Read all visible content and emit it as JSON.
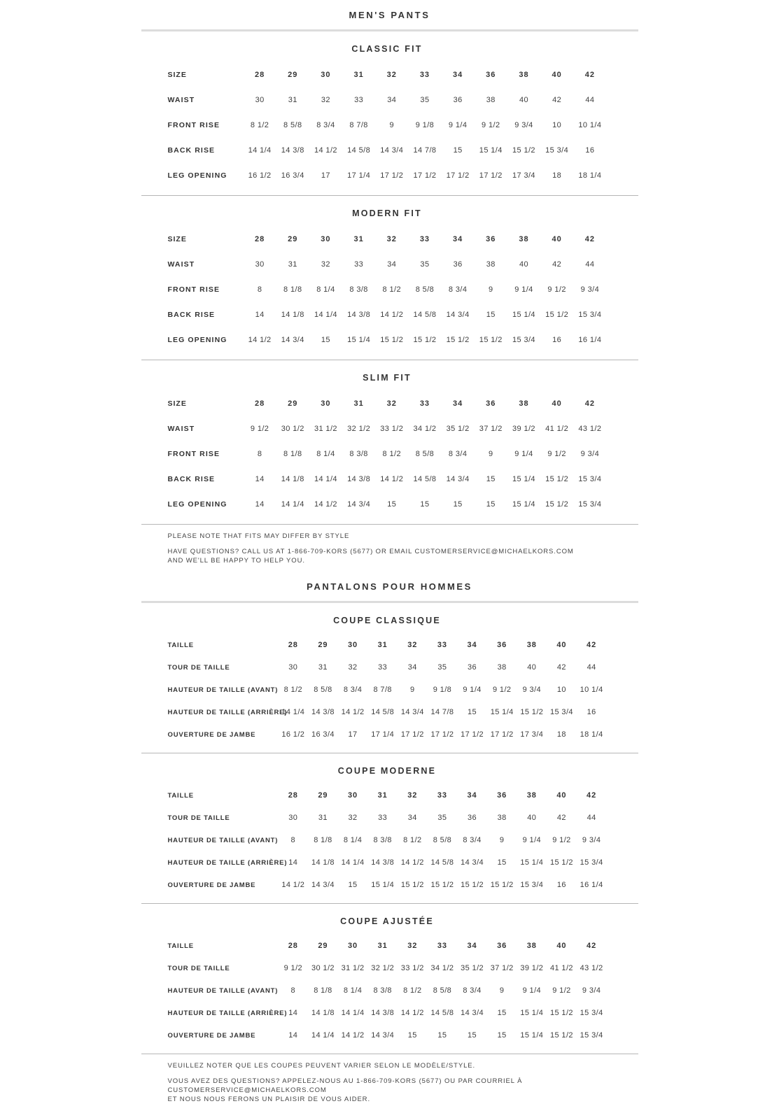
{
  "colors": {
    "text": "#333333",
    "value_text": "#3f3f3f",
    "rule_thick": "#dcdcdc",
    "rule_thin": "#b6b6b6",
    "background": "#ffffff"
  },
  "en": {
    "title": "MEN'S PANTS",
    "sections": [
      {
        "heading": "CLASSIC FIT",
        "rows": [
          {
            "label": "SIZE",
            "values": [
              "28",
              "29",
              "30",
              "31",
              "32",
              "33",
              "34",
              "36",
              "38",
              "40",
              "42"
            ]
          },
          {
            "label": "WAIST",
            "values": [
              "30",
              "31",
              "32",
              "33",
              "34",
              "35",
              "36",
              "38",
              "40",
              "42",
              "44"
            ]
          },
          {
            "label": "FRONT RISE",
            "values": [
              "8 1/2",
              "8 5/8",
              "8 3/4",
              "8 7/8",
              "9",
              "9 1/8",
              "9 1/4",
              "9 1/2",
              "9 3/4",
              "10",
              "10 1/4"
            ]
          },
          {
            "label": "BACK RISE",
            "values": [
              "14 1/4",
              "14 3/8",
              "14 1/2",
              "14 5/8",
              "14 3/4",
              "14 7/8",
              "15",
              "15 1/4",
              "15 1/2",
              "15 3/4",
              "16"
            ]
          },
          {
            "label": "LEG OPENING",
            "values": [
              "16 1/2",
              "16 3/4",
              "17",
              "17 1/4",
              "17 1/2",
              "17 1/2",
              "17 1/2",
              "17 1/2",
              "17 3/4",
              "18",
              "18 1/4"
            ]
          }
        ]
      },
      {
        "heading": "MODERN FIT",
        "rows": [
          {
            "label": "SIZE",
            "values": [
              "28",
              "29",
              "30",
              "31",
              "32",
              "33",
              "34",
              "36",
              "38",
              "40",
              "42"
            ]
          },
          {
            "label": "WAIST",
            "values": [
              "30",
              "31",
              "32",
              "33",
              "34",
              "35",
              "36",
              "38",
              "40",
              "42",
              "44"
            ]
          },
          {
            "label": "FRONT RISE",
            "values": [
              "8",
              "8 1/8",
              "8 1/4",
              "8 3/8",
              "8 1/2",
              "8 5/8",
              "8 3/4",
              "9",
              "9 1/4",
              "9 1/2",
              "9 3/4"
            ]
          },
          {
            "label": "BACK RISE",
            "values": [
              "14",
              "14 1/8",
              "14 1/4",
              "14 3/8",
              "14 1/2",
              "14 5/8",
              "14 3/4",
              "15",
              "15 1/4",
              "15 1/2",
              "15 3/4"
            ]
          },
          {
            "label": "LEG OPENING",
            "values": [
              "14 1/2",
              "14 3/4",
              "15",
              "15 1/4",
              "15 1/2",
              "15 1/2",
              "15 1/2",
              "15 1/2",
              "15 3/4",
              "16",
              "16 1/4"
            ]
          }
        ]
      },
      {
        "heading": "SLIM FIT",
        "rows": [
          {
            "label": "SIZE",
            "values": [
              "28",
              "29",
              "30",
              "31",
              "32",
              "33",
              "34",
              "36",
              "38",
              "40",
              "42"
            ]
          },
          {
            "label": "WAIST",
            "values": [
              "9 1/2",
              "30 1/2",
              "31 1/2",
              "32 1/2",
              "33 1/2",
              "34 1/2",
              "35 1/2",
              "37 1/2",
              "39 1/2",
              "41 1/2",
              "43 1/2"
            ]
          },
          {
            "label": "FRONT RISE",
            "values": [
              "8",
              "8 1/8",
              "8 1/4",
              "8 3/8",
              "8 1/2",
              "8 5/8",
              "8 3/4",
              "9",
              "9 1/4",
              "9 1/2",
              "9 3/4"
            ]
          },
          {
            "label": "BACK RISE",
            "values": [
              "14",
              "14 1/8",
              "14 1/4",
              "14 3/8",
              "14 1/2",
              "14 5/8",
              "14 3/4",
              "15",
              "15 1/4",
              "15 1/2",
              "15 3/4"
            ]
          },
          {
            "label": "LEG OPENING",
            "values": [
              "14",
              "14 1/4",
              "14 1/2",
              "14 3/4",
              "15",
              "15",
              "15",
              "15",
              "15 1/4",
              "15 1/2",
              "15 3/4"
            ]
          }
        ]
      }
    ],
    "notes": [
      "PLEASE NOTE THAT FITS MAY DIFFER BY STYLE",
      "HAVE QUESTIONS? CALL US AT 1-866-709-KORS (5677) OR EMAIL CUSTOMERSERVICE@MICHAELKORS.COM\nAND WE'LL BE HAPPY TO HELP YOU."
    ]
  },
  "fr": {
    "title": "PANTALONS POUR HOMMES",
    "sections": [
      {
        "heading": "COUPE CLASSIQUE",
        "rows": [
          {
            "label": "TAILLE",
            "values": [
              "28",
              "29",
              "30",
              "31",
              "32",
              "33",
              "34",
              "36",
              "38",
              "40",
              "42"
            ]
          },
          {
            "label": "TOUR DE TAILLE",
            "values": [
              "30",
              "31",
              "32",
              "33",
              "34",
              "35",
              "36",
              "38",
              "40",
              "42",
              "44"
            ]
          },
          {
            "label": "HAUTEUR DE TAILLE (AVANT)",
            "values": [
              "8 1/2",
              "8 5/8",
              "8 3/4",
              "8 7/8",
              "9",
              "9 1/8",
              "9 1/4",
              "9 1/2",
              "9 3/4",
              "10",
              "10 1/4"
            ]
          },
          {
            "label": "HAUTEUR DE TAILLE (ARRIÈRE)",
            "values": [
              "14 1/4",
              "14 3/8",
              "14 1/2",
              "14 5/8",
              "14 3/4",
              "14 7/8",
              "15",
              "15 1/4",
              "15 1/2",
              "15 3/4",
              "16"
            ]
          },
          {
            "label": "OUVERTURE DE JAMBE",
            "values": [
              "16 1/2",
              "16 3/4",
              "17",
              "17 1/4",
              "17 1/2",
              "17 1/2",
              "17 1/2",
              "17 1/2",
              "17 3/4",
              "18",
              "18 1/4"
            ]
          }
        ]
      },
      {
        "heading": "COUPE MODERNE",
        "rows": [
          {
            "label": "TAILLE",
            "values": [
              "28",
              "29",
              "30",
              "31",
              "32",
              "33",
              "34",
              "36",
              "38",
              "40",
              "42"
            ]
          },
          {
            "label": "TOUR DE TAILLE",
            "values": [
              "30",
              "31",
              "32",
              "33",
              "34",
              "35",
              "36",
              "38",
              "40",
              "42",
              "44"
            ]
          },
          {
            "label": "HAUTEUR DE TAILLE (AVANT)",
            "values": [
              "8",
              "8 1/8",
              "8 1/4",
              "8 3/8",
              "8 1/2",
              "8 5/8",
              "8 3/4",
              "9",
              "9 1/4",
              "9 1/2",
              "9 3/4"
            ]
          },
          {
            "label": "HAUTEUR DE TAILLE (ARRIÈRE)",
            "values": [
              "14",
              "14 1/8",
              "14 1/4",
              "14 3/8",
              "14 1/2",
              "14 5/8",
              "14 3/4",
              "15",
              "15 1/4",
              "15 1/2",
              "15 3/4"
            ]
          },
          {
            "label": "OUVERTURE DE JAMBE",
            "values": [
              "14 1/2",
              "14 3/4",
              "15",
              "15 1/4",
              "15 1/2",
              "15 1/2",
              "15 1/2",
              "15 1/2",
              "15 3/4",
              "16",
              "16 1/4"
            ]
          }
        ]
      },
      {
        "heading": "COUPE AJUSTÉE",
        "rows": [
          {
            "label": "TAILLE",
            "values": [
              "28",
              "29",
              "30",
              "31",
              "32",
              "33",
              "34",
              "36",
              "38",
              "40",
              "42"
            ]
          },
          {
            "label": "TOUR DE TAILLE",
            "values": [
              "9 1/2",
              "30 1/2",
              "31 1/2",
              "32 1/2",
              "33 1/2",
              "34 1/2",
              "35 1/2",
              "37 1/2",
              "39 1/2",
              "41 1/2",
              "43 1/2"
            ]
          },
          {
            "label": "HAUTEUR DE TAILLE (AVANT)",
            "values": [
              "8",
              "8 1/8",
              "8 1/4",
              "8 3/8",
              "8 1/2",
              "8 5/8",
              "8 3/4",
              "9",
              "9 1/4",
              "9 1/2",
              "9 3/4"
            ]
          },
          {
            "label": "HAUTEUR DE TAILLE (ARRIÈRE)",
            "values": [
              "14",
              "14 1/8",
              "14 1/4",
              "14 3/8",
              "14 1/2",
              "14 5/8",
              "14 3/4",
              "15",
              "15 1/4",
              "15 1/2",
              "15 3/4"
            ]
          },
          {
            "label": "OUVERTURE DE JAMBE",
            "values": [
              "14",
              "14 1/4",
              "14 1/2",
              "14 3/4",
              "15",
              "15",
              "15",
              "15",
              "15 1/4",
              "15 1/2",
              "15 3/4"
            ]
          }
        ]
      }
    ],
    "notes": [
      "VEUILLEZ NOTER QUE LES COUPES PEUVENT VARIER SELON LE MODÈLE/STYLE.",
      "VOUS AVEZ DES QUESTIONS? APPELEZ-NOUS AU 1-866-709-KORS (5677) OU PAR COURRIEL À CUSTOMERSERVICE@MICHAELKORS.COM\nET NOUS NOUS FERONS UN PLAISIR DE VOUS AIDER."
    ]
  }
}
